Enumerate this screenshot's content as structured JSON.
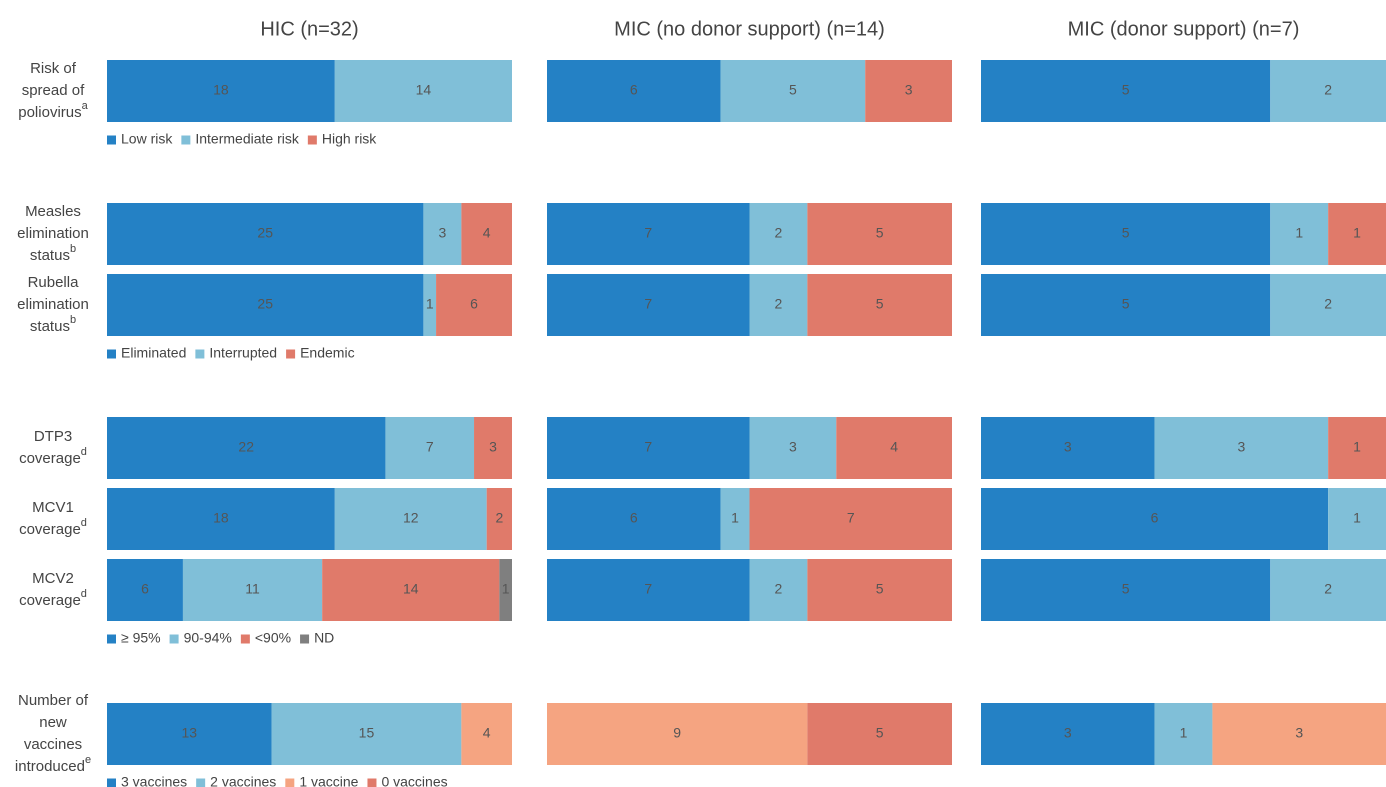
{
  "chart_data": {
    "type": "bar",
    "columns": [
      "HIC (n=32)",
      "MIC (no donor support) (n=14)",
      "MIC (donor support) (n=7)"
    ],
    "groups": [
      {
        "legend": [
          {
            "name": "Low risk",
            "color": "#2481c5"
          },
          {
            "name": "Intermediate risk",
            "color": "#80bfd8"
          },
          {
            "name": "High risk",
            "color": "#e07a6a"
          }
        ],
        "rows": [
          {
            "label_lines": [
              "Risk of",
              "spread of",
              "poliovirus"
            ],
            "note": "a",
            "values": [
              [
                18,
                14,
                null
              ],
              [
                6,
                5,
                3
              ],
              [
                5,
                2,
                null
              ]
            ]
          }
        ]
      },
      {
        "legend": [
          {
            "name": "Eliminated",
            "color": "#2481c5"
          },
          {
            "name": "Interrupted",
            "color": "#80bfd8"
          },
          {
            "name": "Endemic",
            "color": "#e07a6a"
          }
        ],
        "rows": [
          {
            "label_lines": [
              "Measles",
              "elimination",
              "status"
            ],
            "note": "b",
            "values": [
              [
                25,
                3,
                4
              ],
              [
                7,
                2,
                5
              ],
              [
                5,
                1,
                1
              ]
            ]
          },
          {
            "label_lines": [
              "Rubella",
              "elimination",
              "status"
            ],
            "note": "b",
            "values": [
              [
                25,
                1,
                6
              ],
              [
                7,
                2,
                5
              ],
              [
                5,
                2,
                null
              ]
            ]
          }
        ]
      },
      {
        "legend": [
          {
            "name": "≥ 95%",
            "color": "#2481c5"
          },
          {
            "name": "90-94%",
            "color": "#80bfd8"
          },
          {
            "name": "<90%",
            "color": "#e07a6a"
          },
          {
            "name": "ND",
            "color": "#7f7f7f"
          }
        ],
        "rows": [
          {
            "label_lines": [
              "DTP3",
              "coverage"
            ],
            "note": "d",
            "values": [
              [
                22,
                7,
                3,
                null
              ],
              [
                7,
                3,
                4,
                null
              ],
              [
                3,
                3,
                1,
                null
              ]
            ]
          },
          {
            "label_lines": [
              "MCV1",
              "coverage"
            ],
            "note": "d",
            "values": [
              [
                18,
                12,
                2,
                null
              ],
              [
                6,
                1,
                7,
                null
              ],
              [
                6,
                1,
                null,
                null
              ]
            ]
          },
          {
            "label_lines": [
              "MCV2",
              "coverage"
            ],
            "note": "d",
            "values": [
              [
                6,
                11,
                14,
                1
              ],
              [
                7,
                2,
                5,
                null
              ],
              [
                5,
                2,
                null,
                null
              ]
            ]
          }
        ]
      },
      {
        "legend": [
          {
            "name": "3 vaccines",
            "color": "#2481c5"
          },
          {
            "name": "2 vaccines",
            "color": "#80bfd8"
          },
          {
            "name": "1 vaccine",
            "color": "#f5a481"
          },
          {
            "name": "0 vaccines",
            "color": "#e07a6a"
          }
        ],
        "rows": [
          {
            "label_lines": [
              "Number of",
              "new",
              "vaccines",
              "introduced"
            ],
            "note": "e",
            "values": [
              [
                13,
                15,
                4,
                null
              ],
              [
                null,
                null,
                9,
                5
              ],
              [
                3,
                1,
                3,
                null
              ]
            ]
          }
        ]
      }
    ]
  }
}
